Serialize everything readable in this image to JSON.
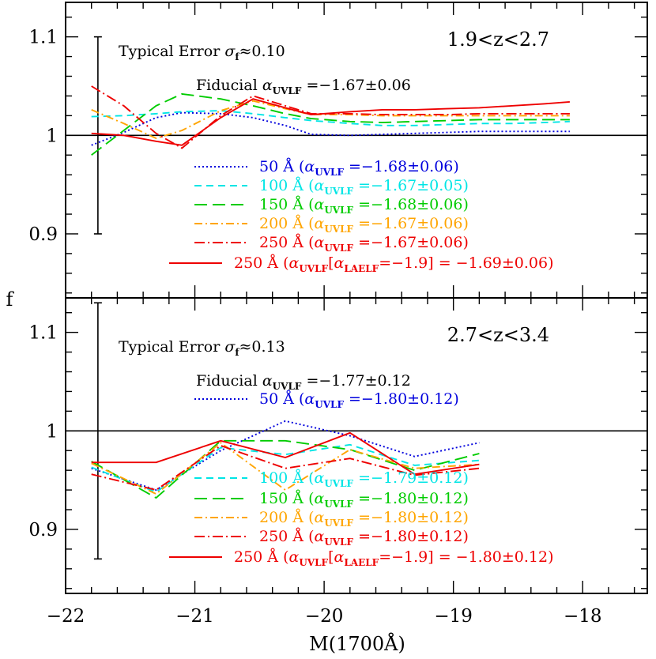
{
  "chart_data": {
    "type": "line",
    "xlabel": "M(1700Å)",
    "ylabel": "f",
    "xlim": [
      -22,
      -17.5
    ],
    "x_ticks": [
      -22,
      -21,
      -20,
      -19,
      -18
    ],
    "x_tick_labels": [
      "−22",
      "−21",
      "−20",
      "−19",
      "−18"
    ],
    "panels": [
      {
        "name": "top",
        "redshift_label": "1.9<z<2.7",
        "ylim": [
          0.835,
          1.135
        ],
        "y_ticks": [
          0.9,
          1.0,
          1.1
        ],
        "y_tick_labels": [
          "0.9",
          "1",
          "1.1"
        ],
        "reference_line": 1.0,
        "error_bar": {
          "x": -21.75,
          "low": 0.9,
          "high": 1.1
        },
        "error_label": {
          "pre": "Typical Error ",
          "sigma": "σ",
          "sub": "f",
          "post": "≈0.10"
        },
        "fiducial_label": {
          "pre": "Fiducial ",
          "alpha": "α",
          "sub": "UVLF",
          "post": " =−1.67±0.06"
        },
        "series": [
          {
            "name": "50 Å",
            "label_alpha": "α",
            "label_sub": "UVLF",
            "label_value": " =−1.68±0.06)",
            "color": "#0000dd",
            "dash": "2,3",
            "x": [
              -21.8,
              -21.55,
              -21.3,
              -21.1,
              -20.8,
              -20.55,
              -20.3,
              -20.1,
              -19.8,
              -19.55,
              -19.3,
              -19.05,
              -18.8,
              -18.55,
              -18.3,
              -18.1
            ],
            "y": [
              0.99,
              1.003,
              1.018,
              1.023,
              1.022,
              1.018,
              1.01,
              1.001,
              1.0,
              1.001,
              1.002,
              1.003,
              1.004,
              1.004,
              1.004,
              1.004
            ]
          },
          {
            "name": "100 Å",
            "label_alpha": "α",
            "label_sub": "UVLF",
            "label_value": " =−1.67±0.05)",
            "color": "#00e5e5",
            "dash": "9,6",
            "x": [
              -21.8,
              -21.55,
              -21.3,
              -21.1,
              -20.8,
              -20.55,
              -20.3,
              -20.1,
              -19.8,
              -19.55,
              -19.3,
              -19.05,
              -18.8,
              -18.55,
              -18.3,
              -18.1
            ],
            "y": [
              1.019,
              1.02,
              1.022,
              1.024,
              1.025,
              1.022,
              1.018,
              1.015,
              1.012,
              1.01,
              1.01,
              1.011,
              1.012,
              1.012,
              1.013,
              1.014
            ]
          },
          {
            "name": "150 Å",
            "label_alpha": "α",
            "label_sub": "UVLF",
            "label_value": " =−1.68±0.06)",
            "color": "#00cc00",
            "dash": "16,7",
            "x": [
              -21.8,
              -21.55,
              -21.3,
              -21.1,
              -20.8,
              -20.55,
              -20.3,
              -20.1,
              -19.8,
              -19.55,
              -19.3,
              -19.05,
              -18.8,
              -18.55,
              -18.3,
              -18.1
            ],
            "y": [
              0.98,
              1.005,
              1.03,
              1.042,
              1.037,
              1.03,
              1.022,
              1.017,
              1.014,
              1.013,
              1.014,
              1.015,
              1.016,
              1.016,
              1.016,
              1.016
            ]
          },
          {
            "name": "200 Å",
            "label_alpha": "α",
            "label_sub": "UVLF",
            "label_value": " =−1.67±0.06)",
            "color": "#ffa500",
            "dash": "10,4,2,4",
            "x": [
              -21.8,
              -21.55,
              -21.3,
              -21.1,
              -20.8,
              -20.55,
              -20.3,
              -20.1,
              -19.8,
              -19.55,
              -19.3,
              -19.05,
              -18.8,
              -18.55,
              -18.3,
              -18.1
            ],
            "y": [
              1.026,
              1.012,
              0.997,
              1.005,
              1.025,
              1.035,
              1.027,
              1.021,
              1.021,
              1.02,
              1.02,
              1.02,
              1.02,
              1.02,
              1.02,
              1.02
            ]
          },
          {
            "name": "250 Å",
            "label_alpha": "α",
            "label_sub": "UVLF",
            "label_value": " =−1.67±0.06)",
            "color": "#ee0000",
            "dash": "13,4,2,4",
            "x": [
              -21.8,
              -21.55,
              -21.3,
              -21.1,
              -20.8,
              -20.55,
              -20.3,
              -20.1,
              -19.8,
              -19.55,
              -19.3,
              -19.05,
              -18.8,
              -18.55,
              -18.3,
              -18.1
            ],
            "y": [
              1.05,
              1.03,
              1.002,
              0.987,
              1.02,
              1.04,
              1.03,
              1.022,
              1.022,
              1.021,
              1.021,
              1.021,
              1.022,
              1.022,
              1.022,
              1.022
            ]
          },
          {
            "name": "250 Å",
            "label_alpha": "α",
            "label_sub": "UVLF",
            "label_laelf_alpha": "α",
            "label_laelf_sub": "LAELF",
            "label_laelf_value": "=−1.9] = −1.69±0.06)",
            "color": "#ee0000",
            "dash": "",
            "x": [
              -21.8,
              -21.55,
              -21.3,
              -21.1,
              -20.8,
              -20.55,
              -20.3,
              -20.1,
              -19.8,
              -19.55,
              -19.3,
              -19.05,
              -18.8,
              -18.55,
              -18.3,
              -18.1
            ],
            "y": [
              1.002,
              1.0,
              0.994,
              0.99,
              1.018,
              1.037,
              1.028,
              1.021,
              1.024,
              1.026,
              1.026,
              1.027,
              1.028,
              1.03,
              1.032,
              1.034
            ]
          }
        ]
      },
      {
        "name": "bottom",
        "redshift_label": "2.7<z<3.4",
        "ylim": [
          0.835,
          1.135
        ],
        "y_ticks": [
          0.9,
          1.0,
          1.1
        ],
        "y_tick_labels": [
          "0.9",
          "1",
          "1.1"
        ],
        "reference_line": 1.0,
        "error_bar": {
          "x": -21.75,
          "low": 0.87,
          "high": 1.13
        },
        "error_label": {
          "pre": "Typical Error ",
          "sigma": "σ",
          "sub": "f",
          "post": "≈0.13"
        },
        "fiducial_label": {
          "pre": "Fiducial ",
          "alpha": "α",
          "sub": "UVLF",
          "post": " =−1.77±0.12"
        },
        "series": [
          {
            "name": "50 Å",
            "label_alpha": "α",
            "label_sub": "UVLF",
            "label_value": " =−1.80±0.12)",
            "color": "#0000dd",
            "dash": "2,3",
            "x": [
              -21.8,
              -21.3,
              -20.8,
              -20.3,
              -19.8,
              -19.3,
              -18.8
            ],
            "y": [
              0.962,
              0.94,
              0.98,
              1.01,
              0.995,
              0.974,
              0.988
            ]
          },
          {
            "name": "100 Å",
            "label_alpha": "α",
            "label_sub": "UVLF",
            "label_value": " =−1.79±0.12)",
            "color": "#00e5e5",
            "dash": "9,6",
            "x": [
              -21.8,
              -21.3,
              -20.8,
              -20.3,
              -19.8,
              -19.3,
              -18.8
            ],
            "y": [
              0.963,
              0.938,
              0.983,
              0.976,
              0.986,
              0.965,
              0.97
            ]
          },
          {
            "name": "150 Å",
            "label_alpha": "α",
            "label_sub": "UVLF",
            "label_value": " =−1.80±0.12)",
            "color": "#00cc00",
            "dash": "16,7",
            "x": [
              -21.8,
              -21.3,
              -20.8,
              -20.3,
              -19.8,
              -19.3,
              -18.8
            ],
            "y": [
              0.969,
              0.932,
              0.99,
              0.99,
              0.981,
              0.96,
              0.977
            ]
          },
          {
            "name": "200 Å",
            "label_alpha": "α",
            "label_sub": "UVLF",
            "label_value": " =−1.80±0.12)",
            "color": "#ffa500",
            "dash": "10,4,2,4",
            "x": [
              -21.8,
              -21.3,
              -20.8,
              -20.3,
              -19.8,
              -19.3,
              -18.8
            ],
            "y": [
              0.967,
              0.936,
              0.988,
              0.94,
              0.981,
              0.962,
              0.966
            ]
          },
          {
            "name": "250 Å",
            "label_alpha": "α",
            "label_sub": "UVLF",
            "label_value": " =−1.80±0.12)",
            "color": "#ee0000",
            "dash": "13,4,2,4",
            "x": [
              -21.8,
              -21.3,
              -20.8,
              -20.3,
              -19.8,
              -19.3,
              -18.8
            ],
            "y": [
              0.956,
              0.94,
              0.985,
              0.962,
              0.972,
              0.955,
              0.962
            ]
          },
          {
            "name": "250 Å",
            "label_alpha": "α",
            "label_sub": "UVLF",
            "label_laelf_alpha": "α",
            "label_laelf_sub": "LAELF",
            "label_laelf_value": "=−1.9] = −1.80±0.12)",
            "color": "#ee0000",
            "dash": "",
            "x": [
              -21.8,
              -21.3,
              -20.8,
              -20.3,
              -19.8,
              -19.3,
              -18.8
            ],
            "y": [
              0.968,
              0.968,
              0.99,
              0.973,
              0.998,
              0.956,
              0.966
            ]
          }
        ]
      }
    ]
  }
}
